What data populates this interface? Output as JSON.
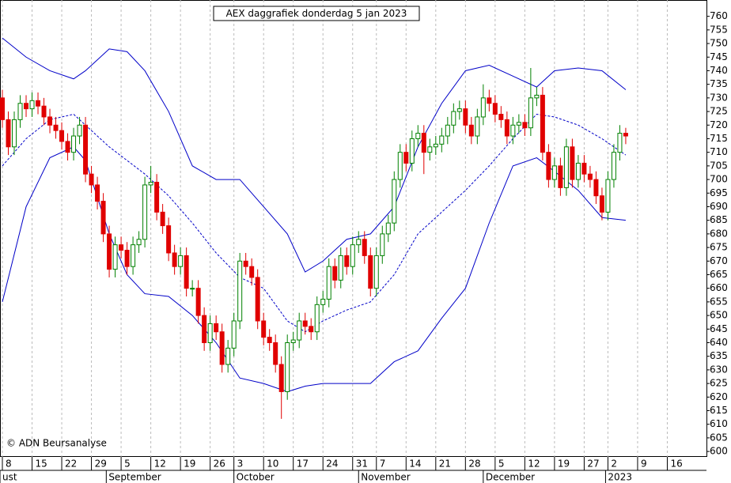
{
  "chart_data": {
    "type": "candlestick",
    "title": "AEX daggrafiek donderdag 5 jan 2023",
    "annotation": "© ADN Beursanalyse",
    "up_color": "#008000",
    "down_color": "#e00000",
    "band_color": "#0000c8",
    "ylim": [
      598,
      766
    ],
    "yticks": [
      600,
      605,
      610,
      615,
      620,
      625,
      630,
      635,
      640,
      645,
      650,
      655,
      660,
      665,
      670,
      675,
      680,
      685,
      690,
      695,
      700,
      705,
      710,
      715,
      720,
      725,
      730,
      735,
      740,
      745,
      750,
      755,
      760
    ],
    "xlim": [
      -0.4,
      118.6
    ],
    "xticks": [
      {
        "value": 0,
        "label": "8"
      },
      {
        "value": 5,
        "label": "15"
      },
      {
        "value": 10,
        "label": "22"
      },
      {
        "value": 15,
        "label": "29"
      },
      {
        "value": 20,
        "label": "5"
      },
      {
        "value": 25,
        "label": "12"
      },
      {
        "value": 30,
        "label": "19"
      },
      {
        "value": 35,
        "label": "26"
      },
      {
        "value": 39,
        "label": "3"
      },
      {
        "value": 44,
        "label": "10"
      },
      {
        "value": 49,
        "label": "17"
      },
      {
        "value": 54,
        "label": "24"
      },
      {
        "value": 59,
        "label": "31"
      },
      {
        "value": 63,
        "label": "7"
      },
      {
        "value": 68,
        "label": "14"
      },
      {
        "value": 73,
        "label": "21"
      },
      {
        "value": 78,
        "label": "28"
      },
      {
        "value": 83,
        "label": "5"
      },
      {
        "value": 88,
        "label": "12"
      },
      {
        "value": 93,
        "label": "19"
      },
      {
        "value": 98,
        "label": "27"
      },
      {
        "value": 102,
        "label": "2"
      },
      {
        "value": 107,
        "label": "9"
      },
      {
        "value": 112,
        "label": "16"
      }
    ],
    "months": [
      {
        "value": -0.4,
        "label": "ust"
      },
      {
        "value": 17.5,
        "label": "September"
      },
      {
        "value": 39,
        "label": "October"
      },
      {
        "value": 60,
        "label": "November"
      },
      {
        "value": 81,
        "label": "December"
      },
      {
        "value": 101.6,
        "label": "2023"
      }
    ],
    "candles": {
      "open": [
        730,
        722,
        712,
        722,
        728,
        726,
        729,
        727,
        723,
        720,
        718,
        714,
        710,
        716,
        720,
        702,
        698,
        692,
        680,
        667,
        676,
        674,
        668,
        676,
        678,
        698,
        699,
        688,
        683,
        673,
        668,
        672,
        660,
        660,
        650,
        640,
        647,
        644,
        632,
        638,
        648,
        670,
        668,
        664,
        648,
        642,
        640,
        632,
        622,
        640,
        641,
        648,
        646,
        644,
        654,
        656,
        668,
        663,
        672,
        668,
        676,
        678,
        672,
        660,
        672,
        680,
        684,
        700,
        710,
        706,
        715,
        717,
        710,
        712,
        713,
        716,
        720,
        725,
        726,
        720,
        716,
        723,
        730,
        728,
        724,
        722,
        716,
        720,
        721,
        719,
        730,
        731,
        710,
        700,
        705,
        697,
        712,
        700,
        706,
        702,
        700,
        694,
        688,
        700,
        710,
        717
      ],
      "high": [
        733,
        725,
        725,
        731,
        731,
        732,
        732,
        730,
        726,
        723,
        721,
        717,
        719,
        723,
        723,
        705,
        701,
        695,
        683,
        679,
        679,
        677,
        679,
        681,
        701,
        705,
        702,
        691,
        686,
        676,
        675,
        675,
        663,
        663,
        653,
        650,
        650,
        647,
        641,
        651,
        673,
        673,
        671,
        667,
        651,
        645,
        643,
        635,
        643,
        644,
        651,
        651,
        649,
        657,
        659,
        671,
        671,
        675,
        675,
        679,
        681,
        681,
        675,
        675,
        683,
        687,
        703,
        713,
        713,
        718,
        720,
        720,
        715,
        716,
        719,
        723,
        728,
        729,
        729,
        723,
        726,
        735,
        733,
        731,
        727,
        725,
        723,
        724,
        724,
        741,
        734,
        734,
        713,
        708,
        708,
        715,
        715,
        709,
        709,
        705,
        703,
        697,
        703,
        713,
        720,
        719
      ],
      "low": [
        719,
        709,
        709,
        719,
        723,
        723,
        724,
        720,
        717,
        715,
        711,
        707,
        707,
        713,
        699,
        695,
        689,
        677,
        664,
        664,
        671,
        665,
        665,
        673,
        675,
        695,
        685,
        680,
        670,
        665,
        665,
        657,
        657,
        647,
        637,
        637,
        641,
        629,
        629,
        635,
        645,
        665,
        661,
        645,
        639,
        637,
        629,
        612,
        619,
        637,
        638,
        643,
        641,
        641,
        651,
        653,
        660,
        660,
        665,
        665,
        673,
        669,
        657,
        657,
        669,
        677,
        681,
        697,
        703,
        703,
        712,
        702,
        707,
        709,
        710,
        713,
        717,
        722,
        717,
        713,
        713,
        720,
        725,
        721,
        719,
        713,
        713,
        717,
        716,
        716,
        727,
        707,
        697,
        697,
        694,
        694,
        697,
        697,
        699,
        697,
        691,
        685,
        685,
        697,
        707,
        713
      ],
      "close": [
        722,
        712,
        722,
        728,
        726,
        729,
        727,
        723,
        720,
        718,
        714,
        710,
        716,
        720,
        702,
        698,
        692,
        680,
        667,
        676,
        674,
        668,
        676,
        678,
        698,
        699,
        688,
        683,
        673,
        668,
        672,
        660,
        660,
        650,
        640,
        647,
        644,
        632,
        638,
        648,
        670,
        668,
        664,
        648,
        642,
        640,
        632,
        622,
        640,
        641,
        648,
        646,
        644,
        654,
        656,
        668,
        663,
        672,
        668,
        676,
        678,
        672,
        660,
        672,
        680,
        684,
        700,
        710,
        706,
        715,
        717,
        710,
        712,
        713,
        716,
        720,
        725,
        726,
        720,
        716,
        723,
        730,
        728,
        724,
        722,
        716,
        720,
        721,
        719,
        730,
        731,
        710,
        700,
        705,
        697,
        712,
        700,
        706,
        702,
        700,
        694,
        688,
        700,
        710,
        717,
        716
      ]
    },
    "band_x": [
      0,
      4,
      8,
      12,
      14,
      18,
      21,
      24,
      28,
      32,
      36,
      40,
      44,
      48,
      51,
      54,
      58,
      62,
      66,
      70,
      74,
      78,
      82,
      86,
      90,
      93,
      97,
      101,
      105
    ],
    "bands": [
      {
        "dashed": false,
        "values": [
          752,
          745,
          740,
          737,
          740,
          748,
          747,
          740,
          725,
          705,
          700,
          700,
          690,
          680,
          666,
          670,
          678,
          680,
          690,
          712,
          728,
          740,
          742,
          738,
          734,
          740,
          741,
          740,
          733
        ]
      },
      {
        "dashed": true,
        "values": [
          705,
          715,
          722,
          724,
          720,
          712,
          707,
          702,
          694,
          684,
          673,
          664,
          660,
          648,
          644,
          648,
          652,
          655,
          665,
          680,
          688,
          696,
          705,
          715,
          724,
          723,
          720,
          715,
          709
        ]
      },
      {
        "dashed": false,
        "values": [
          655,
          690,
          708,
          712,
          707,
          680,
          665,
          658,
          657,
          650,
          640,
          627,
          625,
          622,
          624,
          625,
          625,
          625,
          633,
          637,
          649,
          660,
          684,
          705,
          708,
          703,
          696,
          686,
          685
        ]
      }
    ]
  }
}
